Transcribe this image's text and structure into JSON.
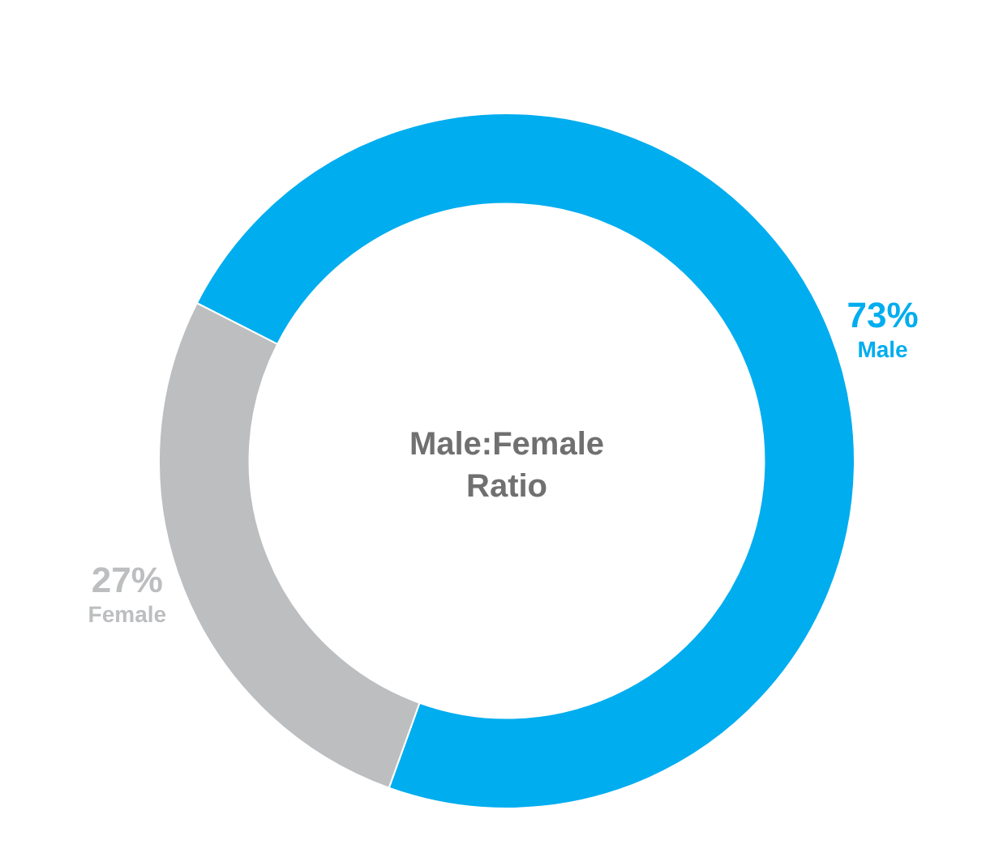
{
  "chart_data": {
    "type": "donut",
    "title": "Male:Female Ratio",
    "categories": [
      "Male",
      "Female"
    ],
    "values": [
      73,
      27
    ],
    "colors": [
      "#00adef",
      "#bcbec0"
    ],
    "value_labels": [
      "73%",
      "27%"
    ],
    "legend": false
  }
}
